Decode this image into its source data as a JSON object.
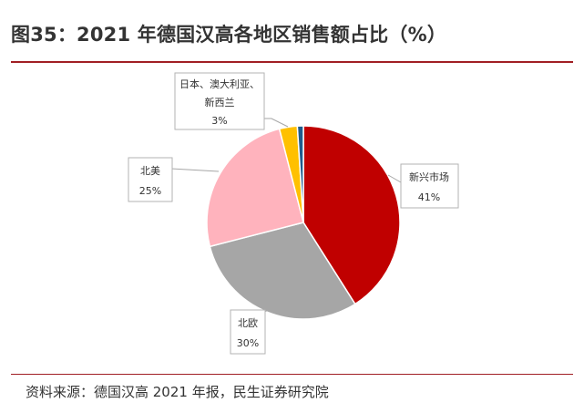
{
  "title": "图35：2021 年德国汉高各地区销售额占比（%）",
  "source": "资料来源：德国汉高 2021 年报，民生证券研究院",
  "chart_data": {
    "type": "pie",
    "title": "图35：2021 年德国汉高各地区销售额占比（%）",
    "slices": [
      {
        "label": "新兴市场",
        "value": 41,
        "value_text": "41%",
        "color": "#c00000"
      },
      {
        "label": "北欧",
        "value": 30,
        "value_text": "30%",
        "color": "#a6a6a6"
      },
      {
        "label": "北美",
        "value": 25,
        "value_text": "25%",
        "color": "#ffb3bd"
      },
      {
        "label": "日本、澳大利亚、新西兰",
        "value": 3,
        "value_text": "3%",
        "color": "#ffc000"
      },
      {
        "label": "",
        "value": 1,
        "value_text": "",
        "color": "#1f5b8c"
      }
    ]
  }
}
